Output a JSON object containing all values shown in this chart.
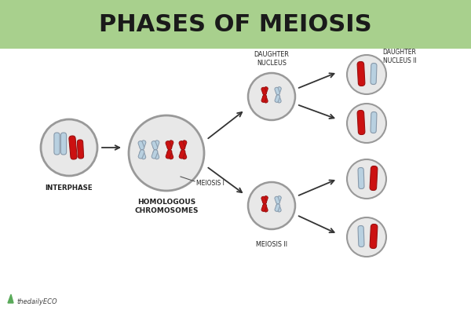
{
  "title": "PHASES OF MEIOSIS",
  "title_bg_color": "#a8d08d",
  "bg_color": "#ffffff",
  "title_fontsize": 22,
  "title_fontweight": "bold",
  "label_interphase": "INTERPHASE",
  "label_homologous": "HOMOLOGOUS\nCHROMOSOMES",
  "label_meiosis1": "MEIOSIS I",
  "label_daughter_nucleus": "DAUGHTER\nNUCLEUS",
  "label_meiosis2": "MEIOSIS II",
  "label_daughter_nucleus2": "DAUGHTER\nNUCLEUS II",
  "label_thedailyeco": "thedailyECO",
  "cell_edge_color": "#888888",
  "cell_face_color": "#e8e8e8",
  "chr_red": "#cc1111",
  "chr_blue": "#b8d0e0",
  "chr_red_edge": "#991111",
  "chr_blue_edge": "#8899aa",
  "arrow_color": "#333333"
}
